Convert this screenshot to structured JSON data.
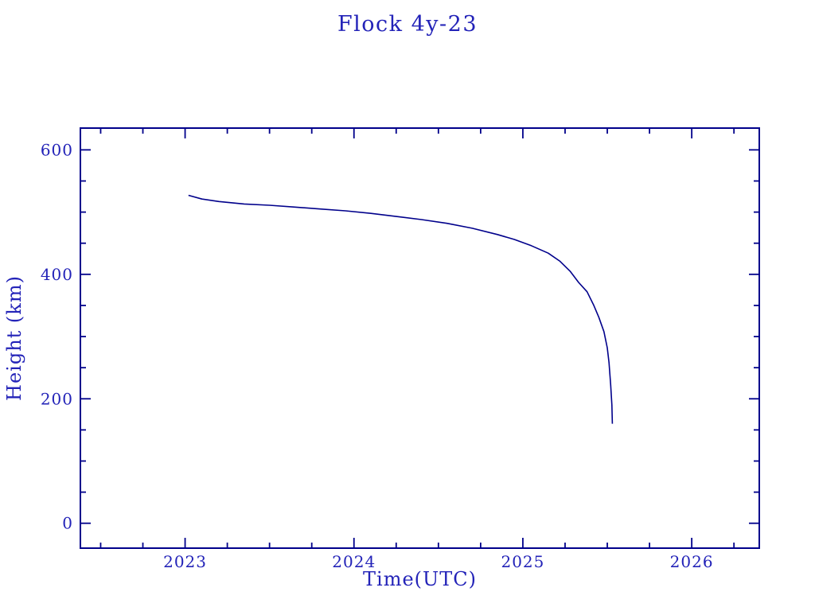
{
  "chart_data": {
    "type": "line",
    "title": "Flock 4y-23",
    "xlabel": "Time(UTC)",
    "ylabel": "Height (km)",
    "xlim": [
      2022.38,
      2026.4
    ],
    "ylim": [
      -40,
      635
    ],
    "x_major_ticks": [
      2023,
      2024,
      2025,
      2026
    ],
    "x_minor_step": 0.25,
    "y_major_ticks": [
      0,
      200,
      400,
      600
    ],
    "y_minor_step": 50,
    "grid": false,
    "legend": "none",
    "series": [
      {
        "name": "Flock 4y-23 height",
        "x": [
          2023.02,
          2023.1,
          2023.2,
          2023.35,
          2023.5,
          2023.65,
          2023.8,
          2023.95,
          2024.1,
          2024.25,
          2024.4,
          2024.55,
          2024.7,
          2024.85,
          2024.95,
          2025.05,
          2025.15,
          2025.22,
          2025.28,
          2025.33,
          2025.38,
          2025.42,
          2025.45,
          2025.48,
          2025.5,
          2025.51,
          2025.52,
          2025.527,
          2025.53
        ],
        "y": [
          527,
          521,
          517,
          513,
          511,
          508,
          505,
          502,
          498,
          493,
          488,
          482,
          474,
          464,
          456,
          446,
          434,
          421,
          405,
          387,
          372,
          350,
          331,
          308,
          282,
          258,
          222,
          190,
          160
        ]
      }
    ]
  },
  "colors": {
    "frame": "#00008b",
    "curve": "#00008b",
    "text": "#2323b8",
    "background": "#ffffff"
  }
}
